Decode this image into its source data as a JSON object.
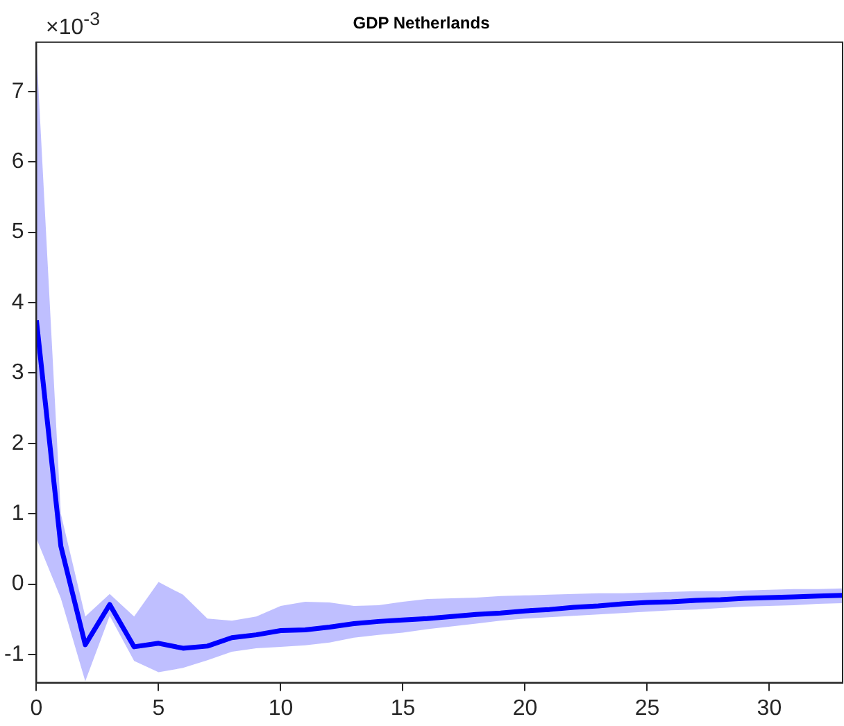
{
  "chart_data": {
    "type": "line",
    "title": "GDP Netherlands",
    "annotations": [
      "×10$^{-3}$"
    ],
    "x": [
      0,
      1,
      2,
      3,
      4,
      5,
      6,
      7,
      8,
      9,
      10,
      11,
      12,
      13,
      14,
      15,
      16,
      17,
      18,
      19,
      20,
      21,
      22,
      23,
      24,
      25,
      26,
      27,
      28,
      29,
      30,
      31,
      32,
      33
    ],
    "series": [
      {
        "color": "#0000ff",
        "values": [
          3.75,
          0.54,
          -0.86,
          -0.29,
          -0.89,
          -0.84,
          -0.91,
          -0.88,
          -0.76,
          -0.72,
          -0.66,
          -0.65,
          -0.61,
          -0.56,
          -0.53,
          -0.51,
          -0.49,
          -0.46,
          -0.43,
          -0.41,
          -0.38,
          -0.36,
          -0.33,
          -0.31,
          -0.28,
          -0.26,
          -0.25,
          -0.23,
          -0.22,
          -0.2,
          -0.19,
          -0.18,
          -0.17,
          -0.16
        ],
        "lower": [
          0.65,
          -0.2,
          -1.38,
          -0.45,
          -1.09,
          -1.25,
          -1.19,
          -1.08,
          -0.96,
          -0.91,
          -0.89,
          -0.87,
          -0.83,
          -0.76,
          -0.72,
          -0.69,
          -0.64,
          -0.6,
          -0.56,
          -0.52,
          -0.49,
          -0.47,
          -0.45,
          -0.43,
          -0.41,
          -0.39,
          -0.37,
          -0.36,
          -0.34,
          -0.32,
          -0.31,
          -0.3,
          -0.28,
          -0.27
        ],
        "upper": [
          7.6,
          1.0,
          -0.46,
          -0.14,
          -0.46,
          0.03,
          -0.15,
          -0.49,
          -0.52,
          -0.46,
          -0.31,
          -0.25,
          -0.26,
          -0.31,
          -0.3,
          -0.25,
          -0.21,
          -0.2,
          -0.19,
          -0.17,
          -0.16,
          -0.15,
          -0.14,
          -0.13,
          -0.13,
          -0.12,
          -0.11,
          -0.1,
          -0.1,
          -0.09,
          -0.08,
          -0.07,
          -0.07,
          -0.06
        ]
      }
    ],
    "xlim": [
      0,
      33
    ],
    "xticks": [
      0,
      5,
      10,
      15,
      20,
      25,
      30
    ],
    "ylim": [
      -1.4,
      7.7
    ],
    "yticks": [
      -1,
      0,
      1,
      2,
      3,
      4,
      5,
      6,
      7
    ],
    "grid": false,
    "legend": false,
    "marker": "none",
    "line_style": "solid"
  }
}
